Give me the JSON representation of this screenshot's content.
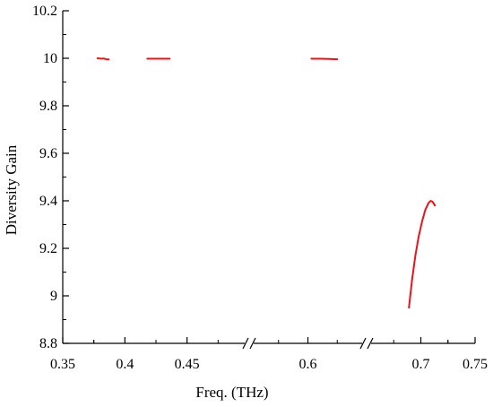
{
  "chart_data": {
    "type": "line",
    "xlabel": "Freq. (THz)",
    "ylabel": "Diversity Gain",
    "ylim": [
      8.8,
      10.2
    ],
    "y_ticks": [
      "8.8",
      "9",
      "9.2",
      "9.4",
      "9.6",
      "9.8",
      "10",
      "10.2"
    ],
    "x_segments": [
      {
        "range": [
          0.35,
          0.5
        ],
        "ticks": [
          "0.35",
          "0.4",
          "0.45"
        ]
      },
      {
        "range": [
          0.55,
          0.65
        ],
        "ticks": [
          "0.6"
        ]
      },
      {
        "range": [
          0.65,
          0.75
        ],
        "ticks": [
          "0.7",
          "0.75"
        ]
      }
    ],
    "axis_break_symbols": [
      "//",
      "//"
    ],
    "grid": false,
    "series_color": "#e8141b",
    "series": [
      {
        "segment": 0,
        "x": [
          0.378,
          0.381,
          0.383,
          0.385,
          0.387
        ],
        "y": [
          10.0,
          9.998,
          9.999,
          9.996,
          9.995
        ]
      },
      {
        "segment": 0,
        "x": [
          0.418,
          0.425,
          0.43,
          0.436
        ],
        "y": [
          9.998,
          9.998,
          9.998,
          9.998
        ]
      },
      {
        "segment": 1,
        "x": [
          0.603,
          0.61,
          0.618,
          0.625
        ],
        "y": [
          9.998,
          9.998,
          9.997,
          9.996
        ]
      },
      {
        "segment": 2,
        "x": [
          0.689,
          0.692,
          0.695,
          0.698,
          0.701,
          0.704,
          0.707,
          0.709,
          0.711,
          0.713
        ],
        "y": [
          8.95,
          9.07,
          9.17,
          9.25,
          9.31,
          9.36,
          9.39,
          9.4,
          9.395,
          9.38
        ]
      }
    ]
  }
}
